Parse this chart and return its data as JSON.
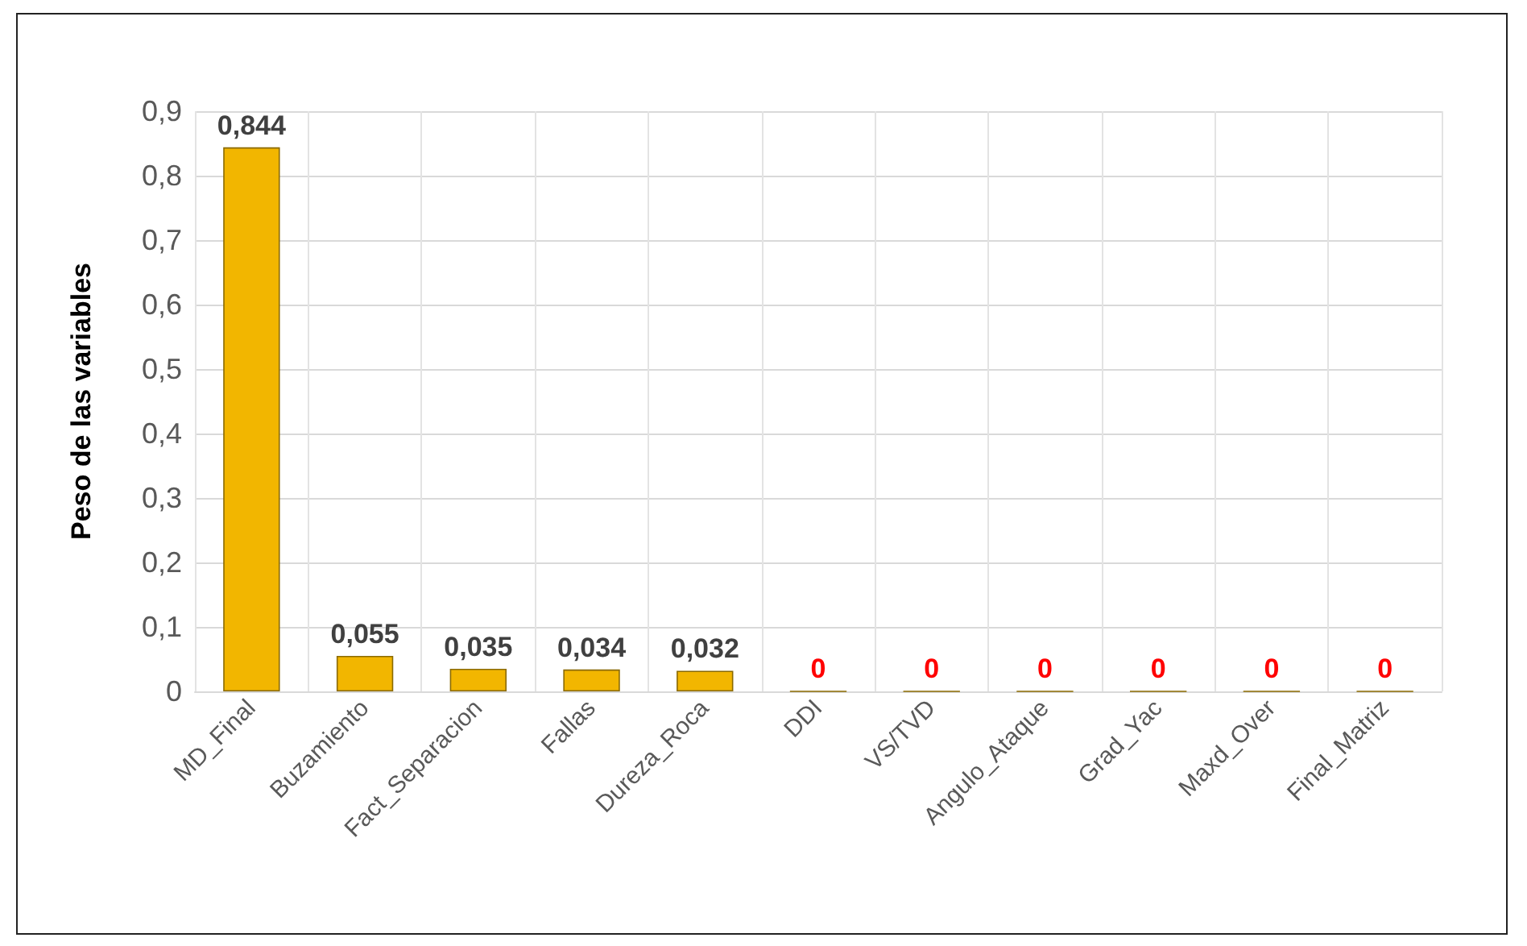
{
  "chart_data": {
    "type": "bar",
    "ylabel": "Peso de las variables",
    "categories": [
      "MD_Final",
      "Buzamiento",
      "Fact_Separacion",
      "Fallas",
      "Dureza_Roca",
      "DDI",
      "VS/TVD",
      "Angulo_Ataque",
      "Grad_Yac",
      "Maxd_Over",
      "Final_Matriz"
    ],
    "values": [
      0.844,
      0.055,
      0.035,
      0.034,
      0.032,
      0,
      0,
      0,
      0,
      0,
      0
    ],
    "value_labels": [
      "0,844",
      "0,055",
      "0,035",
      "0,034",
      "0,032",
      "0",
      "0",
      "0",
      "0",
      "0",
      "0"
    ],
    "color": "#f2b600",
    "ylim": [
      0,
      0.9
    ],
    "yticks": [
      0,
      {
        "value": 0.1,
        "label": "0,1"
      },
      {
        "value": 0.2,
        "label": "0,2"
      },
      {
        "value": 0.3,
        "label": "0,3"
      },
      {
        "value": 0.4,
        "label": "0,4"
      },
      {
        "value": 0.5,
        "label": "0,5"
      },
      {
        "value": 0.6,
        "label": "0,6"
      },
      {
        "value": 0.7,
        "label": "0,7"
      },
      {
        "value": 0.8,
        "label": "0,8"
      },
      {
        "value": 0.9,
        "label": "0,9"
      }
    ],
    "grid": true
  }
}
